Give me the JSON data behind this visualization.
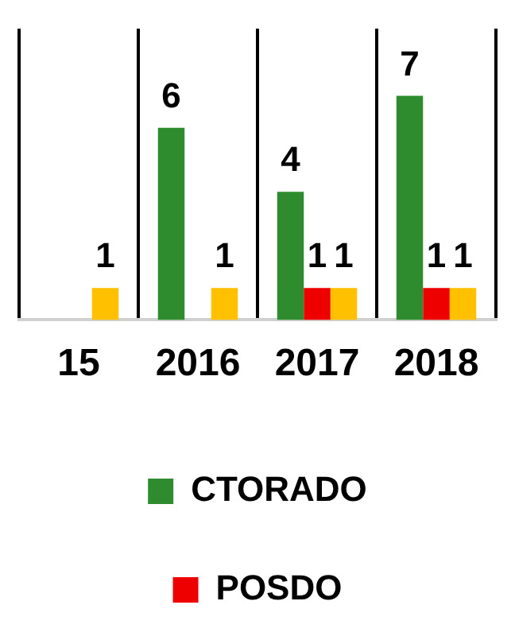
{
  "chart_data": {
    "type": "bar",
    "categories": [
      "15",
      "2016",
      "2017",
      "2018"
    ],
    "series": [
      {
        "name": "CTORADO",
        "color": "#2e8b2e",
        "values": [
          null,
          6,
          4,
          7
        ]
      },
      {
        "name": "POSDO",
        "color": "#ee0000",
        "values": [
          null,
          null,
          1,
          1
        ]
      },
      {
        "color": "#ffc000",
        "values": [
          1,
          1,
          1,
          1
        ]
      }
    ],
    "data_labels": true,
    "grid": "x",
    "legend": "bottom"
  }
}
